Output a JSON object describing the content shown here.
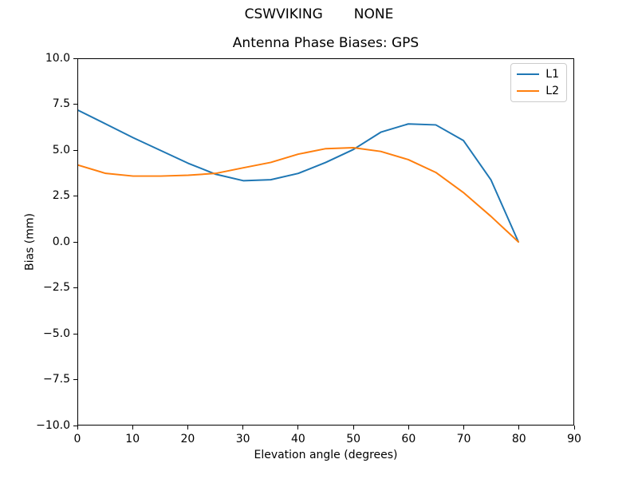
{
  "figure": {
    "suptitle_left": "CSWVIKING",
    "suptitle_right": "NONE"
  },
  "chart_data": {
    "type": "line",
    "title": "Antenna Phase Biases: GPS",
    "xlabel": "Elevation angle (degrees)",
    "ylabel": "Bias (mm)",
    "xlim": [
      0,
      90
    ],
    "ylim": [
      -10,
      10
    ],
    "grid": false,
    "xticks": [
      0,
      10,
      20,
      30,
      40,
      50,
      60,
      70,
      80,
      90
    ],
    "xtick_labels": [
      "0",
      "10",
      "20",
      "30",
      "40",
      "50",
      "60",
      "70",
      "80",
      "90"
    ],
    "yticks": [
      10,
      7.5,
      5,
      2.5,
      0,
      -2.5,
      -5,
      -7.5,
      -10
    ],
    "ytick_labels": [
      "10.0",
      "7.5",
      "5.0",
      "2.5",
      "0.0",
      "−2.5",
      "−5.0",
      "−7.5",
      "−10.0"
    ],
    "x": [
      0,
      5,
      10,
      15,
      20,
      25,
      30,
      35,
      40,
      45,
      50,
      55,
      60,
      65,
      70,
      75,
      80
    ],
    "series": [
      {
        "name": "L1",
        "color": "#1f77b4",
        "values": [
          7.2,
          6.45,
          5.7,
          5.0,
          4.3,
          3.7,
          3.35,
          3.4,
          3.75,
          4.35,
          5.05,
          6.0,
          6.45,
          6.4,
          5.55,
          3.4,
          0.0
        ]
      },
      {
        "name": "L2",
        "color": "#ff7f0e",
        "values": [
          4.2,
          3.75,
          3.6,
          3.6,
          3.65,
          3.75,
          4.05,
          4.35,
          4.8,
          5.1,
          5.15,
          4.95,
          4.5,
          3.8,
          2.7,
          1.4,
          0.0
        ]
      }
    ],
    "legend": {
      "position": "upper right",
      "entries": [
        "L1",
        "L2"
      ]
    }
  }
}
